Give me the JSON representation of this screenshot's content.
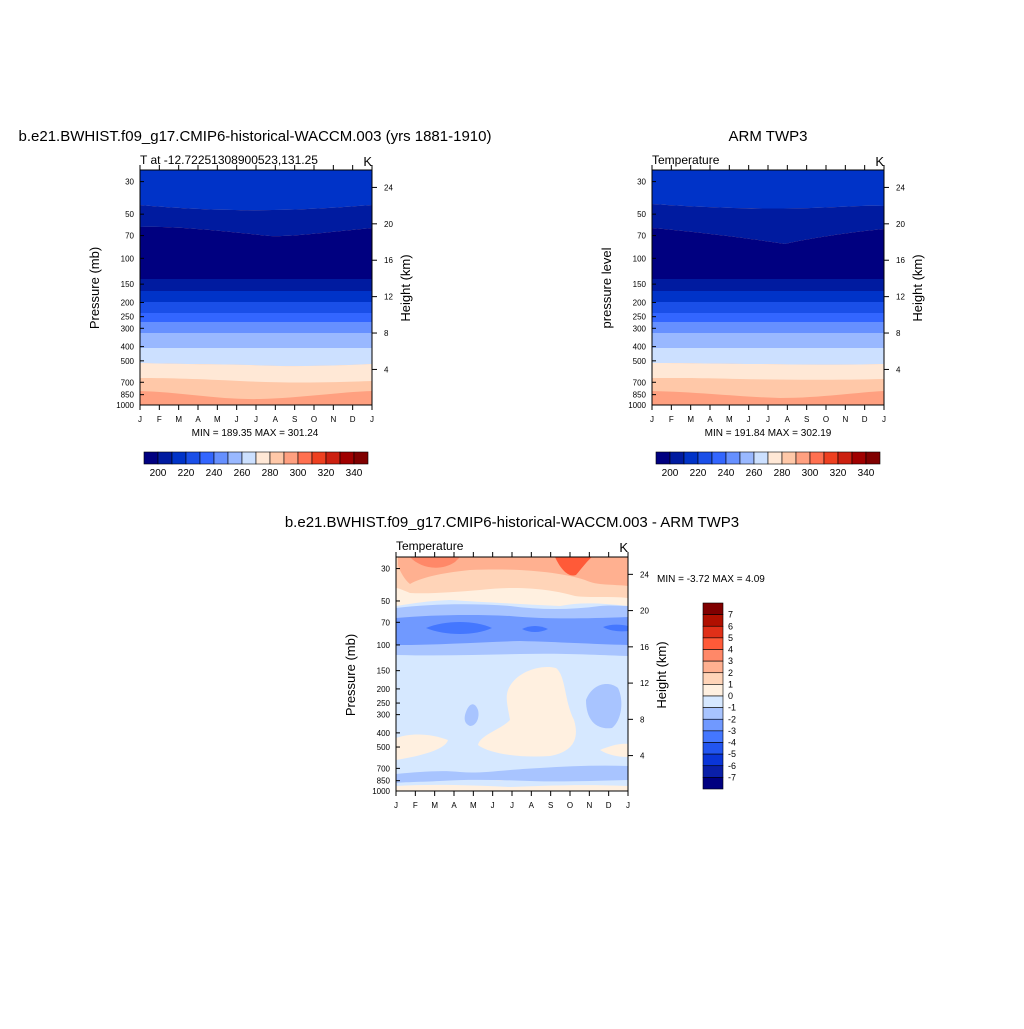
{
  "chart_data": [
    {
      "type": "heatmap",
      "title": "b.e21.BWHIST.f09_g17.CMIP6-historical-WACCM.003 (yrs 1881-1910)",
      "left_label": "T at -12.72251308900523,131.25",
      "right_label": "K",
      "ylabel": "Pressure (mb)",
      "ylabel_right": "Height (km)",
      "x": [
        "J",
        "F",
        "M",
        "A",
        "M",
        "J",
        "J",
        "A",
        "S",
        "O",
        "N",
        "D",
        "J"
      ],
      "pressure_ticks": [
        30,
        50,
        70,
        100,
        150,
        200,
        250,
        300,
        400,
        500,
        700,
        850,
        1000
      ],
      "height_ticks": [
        24,
        20,
        16,
        12,
        8,
        4
      ],
      "minmax_text": "MIN = 189.35 MAX = 301.24",
      "colorbar": {
        "orientation": "horizontal",
        "levels": [
          200,
          210,
          220,
          230,
          240,
          250,
          260,
          270,
          280,
          290,
          300,
          310,
          320,
          330,
          340
        ],
        "labels": [
          "200",
          "220",
          "240",
          "260",
          "280",
          "300",
          "320",
          "340"
        ]
      }
    },
    {
      "type": "heatmap",
      "title": "ARM TWP3",
      "left_label": "Temperature",
      "right_label": "K",
      "ylabel": "pressure level",
      "ylabel_right": "Height (km)",
      "x": [
        "J",
        "F",
        "M",
        "A",
        "M",
        "J",
        "J",
        "A",
        "S",
        "O",
        "N",
        "D",
        "J"
      ],
      "pressure_ticks": [
        30,
        50,
        70,
        100,
        150,
        200,
        250,
        300,
        400,
        500,
        700,
        850,
        1000
      ],
      "height_ticks": [
        24,
        20,
        16,
        12,
        8,
        4
      ],
      "minmax_text": "MIN = 191.84 MAX = 302.19",
      "colorbar": {
        "orientation": "horizontal",
        "levels": [
          200,
          210,
          220,
          230,
          240,
          250,
          260,
          270,
          280,
          290,
          300,
          310,
          320,
          330,
          340
        ],
        "labels": [
          "200",
          "220",
          "240",
          "260",
          "280",
          "300",
          "320",
          "340"
        ]
      }
    },
    {
      "type": "heatmap",
      "title": "b.e21.BWHIST.f09_g17.CMIP6-historical-WACCM.003 - ARM TWP3",
      "left_label": "Temperature",
      "right_label": "K",
      "ylabel": "Pressure (mb)",
      "ylabel_right": "Height (km)",
      "x": [
        "J",
        "F",
        "M",
        "A",
        "M",
        "J",
        "J",
        "A",
        "S",
        "O",
        "N",
        "D",
        "J"
      ],
      "pressure_ticks": [
        30,
        50,
        70,
        100,
        150,
        200,
        250,
        300,
        400,
        500,
        700,
        850,
        1000
      ],
      "height_ticks": [
        24,
        20,
        16,
        12,
        8,
        4
      ],
      "minmax_text": "MIN =  -3.72 MAX =   4.09",
      "colorbar": {
        "orientation": "vertical",
        "levels": [
          -7,
          -6,
          -5,
          -4,
          -3,
          -2,
          -1,
          0,
          1,
          2,
          3,
          4,
          5,
          6,
          7
        ],
        "labels": [
          "7",
          "6",
          "5",
          "4",
          "3",
          "2",
          "1",
          "0",
          "-1",
          "-2",
          "-3",
          "-4",
          "-5",
          "-6",
          "-7"
        ]
      }
    }
  ],
  "colors": {
    "temp_scale": [
      "#000080",
      "#001ba0",
      "#0033c8",
      "#1a4fe8",
      "#3366ff",
      "#6690ff",
      "#99b8ff",
      "#cce0ff",
      "#ffe8d6",
      "#ffc8a8",
      "#ffa080",
      "#ff7050",
      "#ee4020",
      "#cc2010",
      "#a00000",
      "#800000"
    ],
    "diff_scale": [
      "#000080",
      "#0a1fa8",
      "#0a35d8",
      "#2255f0",
      "#4477ff",
      "#7099ff",
      "#a8c4ff",
      "#d6e8ff",
      "#fff0e0",
      "#ffd4b8",
      "#ffb090",
      "#ff8868",
      "#ff5a38",
      "#e03018",
      "#b01000",
      "#800000"
    ]
  }
}
